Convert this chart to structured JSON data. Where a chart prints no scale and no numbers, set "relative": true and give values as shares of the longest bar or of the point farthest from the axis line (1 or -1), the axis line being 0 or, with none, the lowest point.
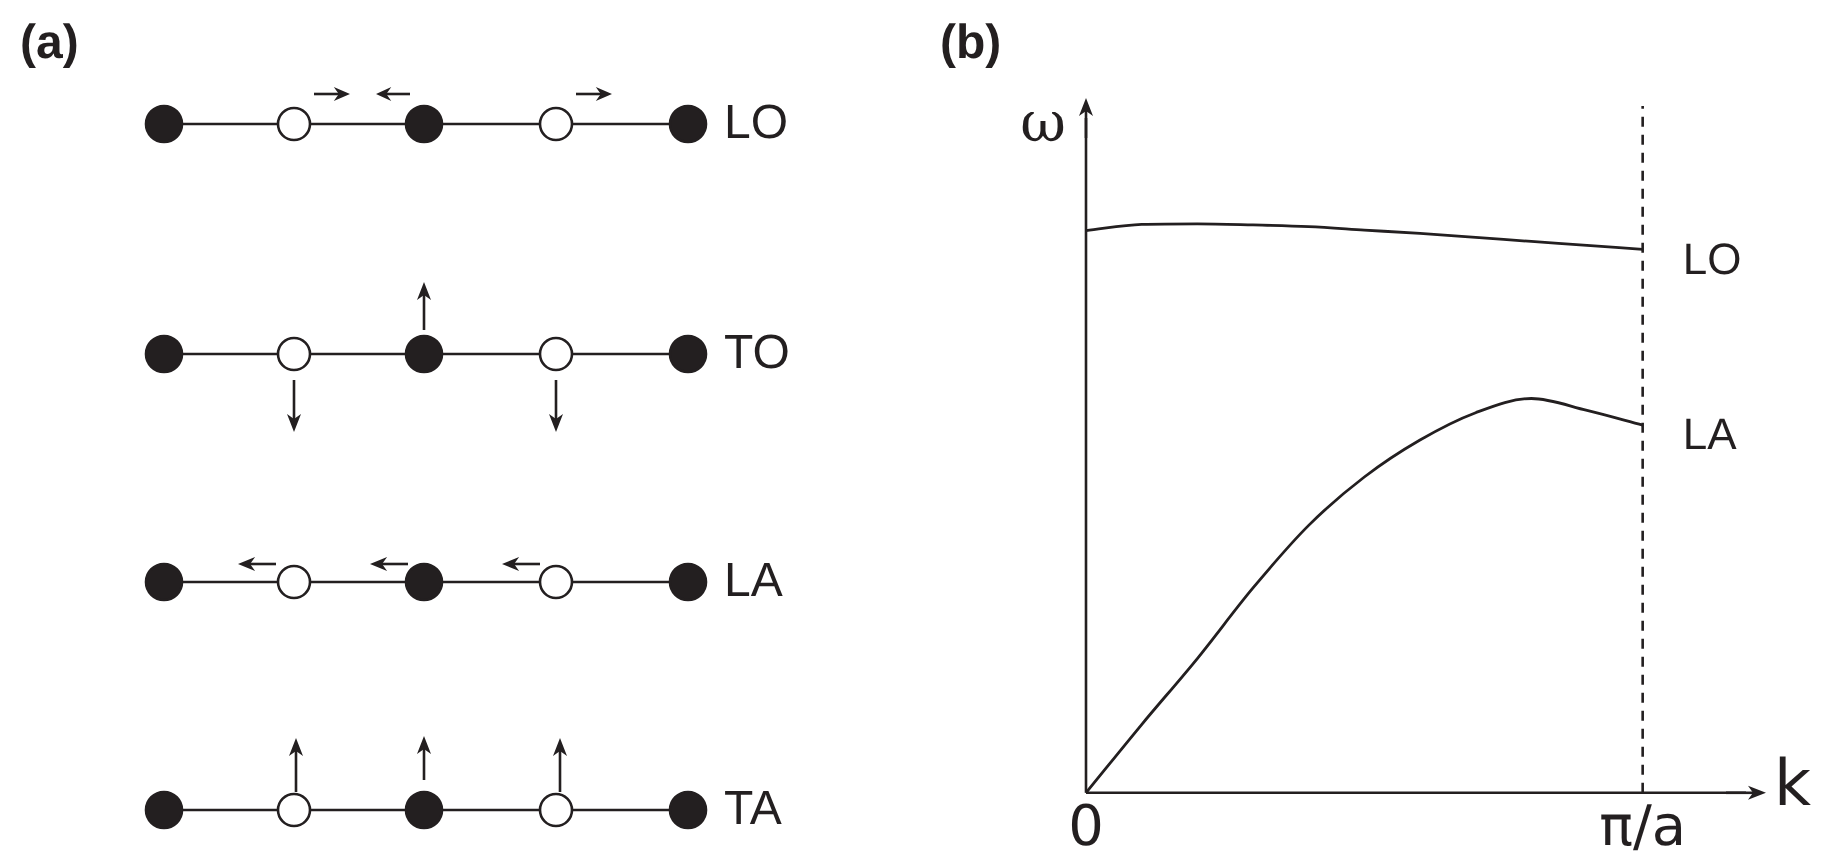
{
  "chart_data": [
    {
      "type": "other",
      "title": "(a)",
      "annotations": [
        "LO",
        "TO",
        "LA",
        "TA"
      ]
    },
    {
      "type": "line",
      "title": "(b)",
      "xlabel": "k",
      "ylabel": "ω",
      "relative": true,
      "categories": [
        "0",
        null,
        null,
        null,
        null,
        null,
        null,
        null,
        null,
        null,
        "π/a",
        null,
        null
      ],
      "grid": false,
      "legend": false,
      "marker": "none",
      "line_style": "solid",
      "ref_lines": [
        {
          "axis": "x",
          "value": "π/a",
          "line_style": "dashed",
          "color": "#231f20"
        }
      ],
      "series": [
        {
          "name": "LO",
          "color": "#231f20",
          "values": [
            0.988,
            0.999,
            1,
            0.998,
            0.995,
            0.989,
            0.983,
            0.976,
            0.969,
            0.962,
            0.955,
            null,
            null
          ]
        },
        {
          "name": "LA",
          "color": "#231f20",
          "values": [
            0,
            0.12,
            0.236,
            0.36,
            0.47,
            0.555,
            0.62,
            0.668,
            0.693,
            0.672,
            0.646,
            null,
            null
          ]
        }
      ]
    }
  ]
}
